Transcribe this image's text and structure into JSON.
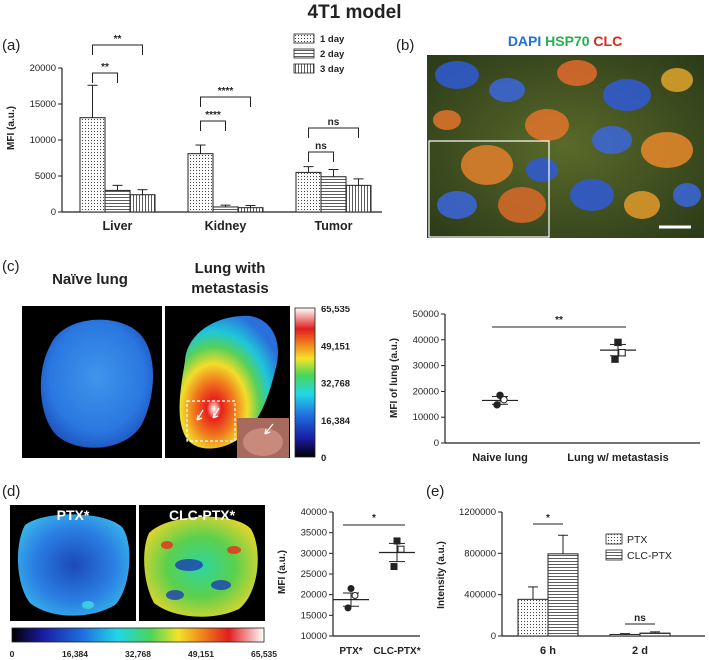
{
  "figure_title": "4T1 model",
  "panels": {
    "a": {
      "label": "(a)"
    },
    "b": {
      "label": "(b)",
      "stain_dapi": "DAPI",
      "stain_hsp70": "HSP70",
      "stain_clc": "CLC"
    },
    "c": {
      "label": "(c)",
      "naive_title": "Naïve lung",
      "met_title_1": "Lung with",
      "met_title_2": "metastasis",
      "colorbar_ticks": [
        "65,535",
        "49,151",
        "32,768",
        "16,384",
        "0"
      ]
    },
    "d": {
      "label": "(d)",
      "img1_title": "PTX*",
      "img2_title": "CLC-PTX*",
      "colorbar_ticks": [
        "0",
        "16,384",
        "32,768",
        "49,151",
        "65,535"
      ]
    },
    "e": {
      "label": "(e)"
    }
  },
  "colors": {
    "dapi": "#1e6fd8",
    "hsp70": "#22b14c",
    "clc": "#e0251b"
  },
  "chart_data": [
    {
      "id": "a",
      "type": "bar",
      "categories": [
        "Liver",
        "Kidney",
        "Tumor"
      ],
      "series": [
        {
          "name": "1 day",
          "values": [
            13100,
            8100,
            5500
          ],
          "errors": [
            4500,
            1200,
            800
          ],
          "pattern": "dots"
        },
        {
          "name": "2 day",
          "values": [
            3000,
            700,
            4900
          ],
          "errors": [
            700,
            250,
            1000
          ],
          "pattern": "hlines"
        },
        {
          "name": "3 day",
          "values": [
            2400,
            600,
            3700
          ],
          "errors": [
            700,
            300,
            900
          ],
          "pattern": "vlines"
        }
      ],
      "ylabel": "MFI (a.u.)",
      "ylim": [
        0,
        20000
      ],
      "yticks": [
        "0",
        "5000",
        "10000",
        "15000",
        "20000"
      ],
      "annotations": [
        "**",
        "**",
        "****",
        "****",
        "ns",
        "ns"
      ]
    },
    {
      "id": "c",
      "type": "scatter",
      "categories": [
        "Naive lung",
        "Lung w/ metastasis"
      ],
      "points": [
        [
          18500,
          16800,
          14800
        ],
        [
          39000,
          35000,
          32500
        ]
      ],
      "means": [
        16500,
        36000
      ],
      "sem": [
        1500,
        2200
      ],
      "ylabel": "MFI of lung (a.u.)",
      "ylim": [
        0,
        50000
      ],
      "yticks": [
        "0",
        "10000",
        "20000",
        "30000",
        "40000",
        "50000"
      ],
      "annotations": [
        "**"
      ]
    },
    {
      "id": "d",
      "type": "scatter",
      "categories": [
        "PTX*",
        "CLC-PTX*"
      ],
      "points": [
        [
          21500,
          19800,
          16800
        ],
        [
          33000,
          31000,
          26800
        ]
      ],
      "means": [
        18800,
        30200
      ],
      "sem": [
        1600,
        2200
      ],
      "ylabel": "MFI (a.u.)",
      "ylim": [
        10000,
        40000
      ],
      "yticks": [
        "10000",
        "15000",
        "20000",
        "25000",
        "30000",
        "35000",
        "40000"
      ],
      "annotations": [
        "*"
      ]
    },
    {
      "id": "e",
      "type": "bar",
      "categories": [
        "6 h",
        "2 d"
      ],
      "series": [
        {
          "name": "PTX",
          "values": [
            355000,
            15000
          ],
          "errors": [
            120000,
            8000
          ],
          "pattern": "dots"
        },
        {
          "name": "CLC-PTX",
          "values": [
            795000,
            28000
          ],
          "errors": [
            180000,
            12000
          ],
          "pattern": "hlines"
        }
      ],
      "ylabel": "Intensity (a.u.)",
      "ylim": [
        0,
        1200000
      ],
      "yticks": [
        "0",
        "400000",
        "800000",
        "1200000"
      ],
      "annotations": [
        "*",
        "ns"
      ]
    }
  ]
}
